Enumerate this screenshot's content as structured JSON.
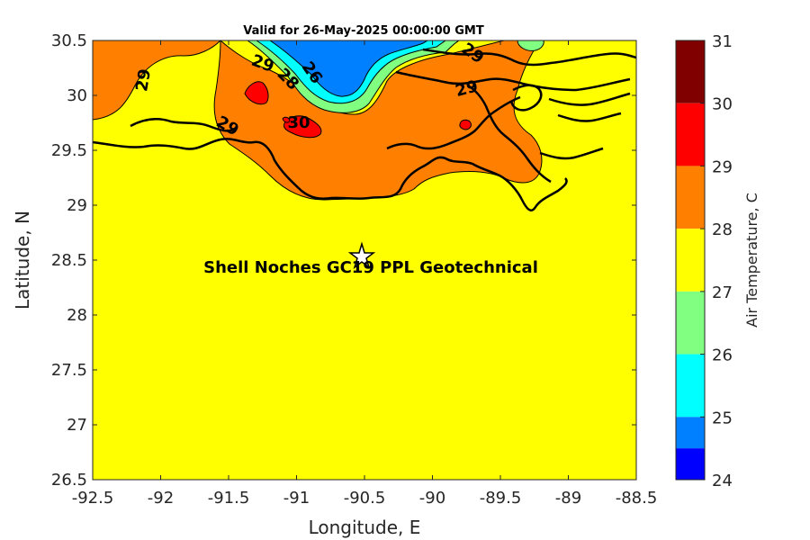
{
  "title": "Valid for 26-May-2025 00:00:00 GMT",
  "map": {
    "xlabel": "Longitude, E",
    "ylabel": "Latitude, N",
    "xlim": [
      -92.5,
      -88.5
    ],
    "ylim": [
      26.5,
      30.5
    ],
    "xticks": [
      "-92.5",
      "-92",
      "-91.5",
      "-91",
      "-90.5",
      "-90",
      "-89.5",
      "-89",
      "-88.5"
    ],
    "yticks": [
      "26.5",
      "27",
      "27.5",
      "28",
      "28.5",
      "29",
      "29.5",
      "30",
      "30.5"
    ],
    "contour_labels": [
      "29",
      "29",
      "29",
      "28",
      "26",
      "30",
      "29",
      "29"
    ],
    "site_marker": "star-icon",
    "site_label": "Shell Noches   GC19 PPL  Geotechnical",
    "site_lon": -90.52,
    "site_lat": 28.54
  },
  "colorbar": {
    "label": "Air Temperature, C",
    "ticks": [
      "31",
      "30",
      "29",
      "28",
      "27",
      "26",
      "25",
      "24"
    ],
    "levels": [
      {
        "from": 30,
        "to": 31,
        "color": "#800000"
      },
      {
        "from": 29,
        "to": 30,
        "color": "#ff0000"
      },
      {
        "from": 28,
        "to": 29,
        "color": "#ff8000"
      },
      {
        "from": 27,
        "to": 28,
        "color": "#ffff00"
      },
      {
        "from": 26,
        "to": 27,
        "color": "#80ff80"
      },
      {
        "from": 25,
        "to": 26,
        "color": "#00ffff"
      },
      {
        "from": 24.5,
        "to": 25,
        "color": "#0080ff"
      },
      {
        "from": 24,
        "to": 24.5,
        "color": "#0000ff"
      }
    ]
  },
  "colors": {
    "yellow": "#ffff00",
    "orange": "#ff8000",
    "red": "#ff0000",
    "green": "#80ff80",
    "cyan": "#00ffff",
    "blue": "#0080ff"
  }
}
